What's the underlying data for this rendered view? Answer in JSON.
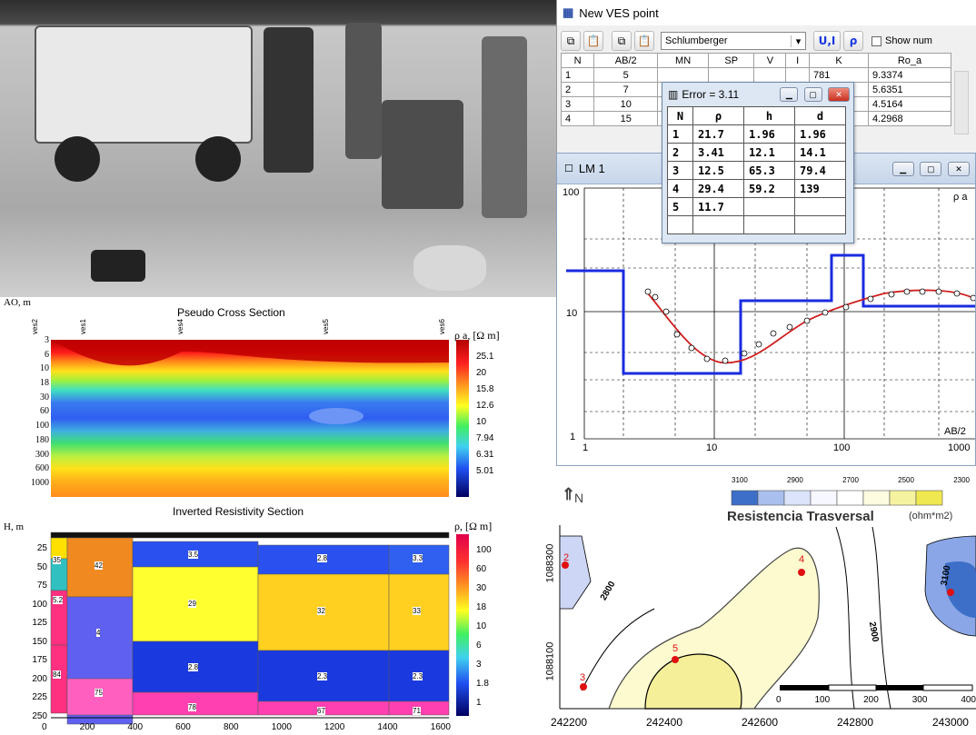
{
  "ves_window": {
    "title": "New VES point",
    "array_select": "Schlumberger",
    "ui_label": "U,I",
    "rho_label": "ρ",
    "show_label": "Show num",
    "columns": [
      "N",
      "AB/2",
      "MN",
      "SP",
      "V",
      "I",
      "K",
      "Ro_a"
    ],
    "rows": [
      {
        "n": "1",
        "ab": "5",
        "k": "781",
        "ro": "9.3374"
      },
      {
        "n": "2",
        "ab": "7",
        "k": "861",
        "ro": "5.6351"
      },
      {
        "n": "3",
        "ab": "10",
        "k": "905",
        "ro": "4.5164"
      },
      {
        "n": "4",
        "ab": "15",
        "k": "7.44",
        "ro": "4.2968"
      }
    ]
  },
  "error_window": {
    "title": "Error = 3.11",
    "columns": [
      "N",
      "ρ",
      "h",
      "d"
    ],
    "rows": [
      [
        "1",
        "21.7",
        "1.96",
        "1.96"
      ],
      [
        "2",
        "3.41",
        "12.1",
        "14.1"
      ],
      [
        "3",
        "12.5",
        "65.3",
        "79.4"
      ],
      [
        "4",
        "29.4",
        "59.2",
        "139"
      ],
      [
        "5",
        "11.7",
        "",
        ""
      ]
    ]
  },
  "lm1_window": {
    "title": "LM 1",
    "y_label": "ρ a",
    "x_label": "AB/2",
    "y_ticks": [
      "100",
      "10",
      "1"
    ],
    "x_ticks": [
      "1",
      "10",
      "100",
      "1000"
    ]
  },
  "pseudo_section": {
    "title": "Pseudo Cross Section",
    "y_axis": "AO, m",
    "y_ticks": [
      "3",
      "6",
      "10",
      "18",
      "30",
      "60",
      "100",
      "180",
      "300",
      "600",
      "1000"
    ],
    "legend_title": "ρ a, [Ω m]",
    "legend": [
      "25.1",
      "20",
      "15.8",
      "12.6",
      "10",
      "7.94",
      "6.31",
      "5.01"
    ],
    "stations": [
      "ves2",
      "ves1",
      "ves4",
      "ves5",
      "ves6"
    ]
  },
  "inverted_section": {
    "title": "Inverted Resistivity Section",
    "y_axis": "H, m",
    "y_ticks": [
      "25",
      "50",
      "75",
      "100",
      "125",
      "150",
      "175",
      "200",
      "225",
      "250"
    ],
    "x_ticks": [
      "0",
      "200",
      "400",
      "600",
      "800",
      "1000",
      "1200",
      "1400",
      "1600"
    ],
    "legend_title": "ρ, [Ω m]",
    "legend": [
      "100",
      "60",
      "30",
      "18",
      "10",
      "6",
      "3",
      "1.8",
      "1"
    ],
    "labels": [
      "35",
      "42",
      "5.2",
      "4",
      "84",
      "75",
      "3.5",
      "29",
      "2.8",
      "78",
      "2.8",
      "32",
      "2.3",
      "67",
      "3.3",
      "33",
      "2.3",
      "71"
    ]
  },
  "map": {
    "north_label": "N",
    "title": "Resistencia Trasversal",
    "unit": "(ohm*m2)",
    "scale_ticks": [
      "3100",
      "2900",
      "2700",
      "2500",
      "2300"
    ],
    "y_ticks": [
      "1088300",
      "1088100"
    ],
    "x_ticks": [
      "242200",
      "242400",
      "242600",
      "242800",
      "243000"
    ],
    "contours": [
      "2800",
      "2900",
      "3100"
    ],
    "points": [
      "2",
      "3",
      "4",
      "5",
      "6"
    ],
    "scalebar": [
      "0",
      "100",
      "200",
      "300",
      "400"
    ]
  }
}
